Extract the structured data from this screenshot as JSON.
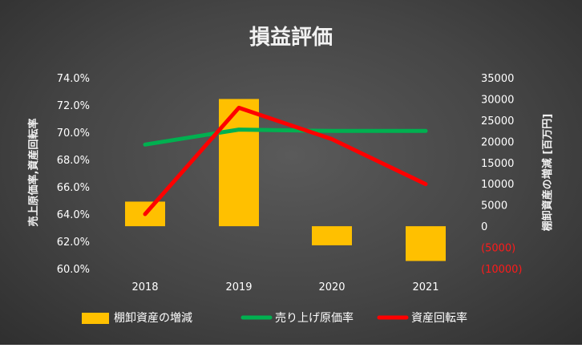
{
  "chart_data": {
    "type": "bar+line",
    "title": "損益評価",
    "categories": [
      "2018",
      "2019",
      "2020",
      "2021"
    ],
    "y_left": {
      "label": "売上原価率,資産回転率",
      "min": 0.6,
      "max": 0.74,
      "step": 0.02,
      "ticks": [
        "74.0%",
        "72.0%",
        "70.0%",
        "68.0%",
        "66.0%",
        "64.0%",
        "62.0%",
        "60.0%"
      ]
    },
    "y_right": {
      "label": "棚卸資産の増減 [百万円]",
      "min": -10000,
      "max": 35000,
      "step": 5000,
      "ticks": [
        "35000",
        "30000",
        "25000",
        "20000",
        "15000",
        "10000",
        "5000",
        "0",
        "(5000)",
        "(10000)"
      ]
    },
    "series": [
      {
        "name": "棚卸資産の増減",
        "type": "bar",
        "axis": "right",
        "color": "#ffc000",
        "values": [
          5800,
          30000,
          -4500,
          -8200
        ]
      },
      {
        "name": "売り上げ原価率",
        "type": "line",
        "axis": "left",
        "color": "#00b050",
        "values": [
          0.691,
          0.702,
          0.701,
          0.701
        ]
      },
      {
        "name": "資産回転率",
        "type": "line",
        "axis": "left",
        "color": "#ff0000",
        "values": [
          0.64,
          0.718,
          0.695,
          0.662
        ]
      }
    ],
    "grid": false,
    "legend_position": "bottom"
  }
}
